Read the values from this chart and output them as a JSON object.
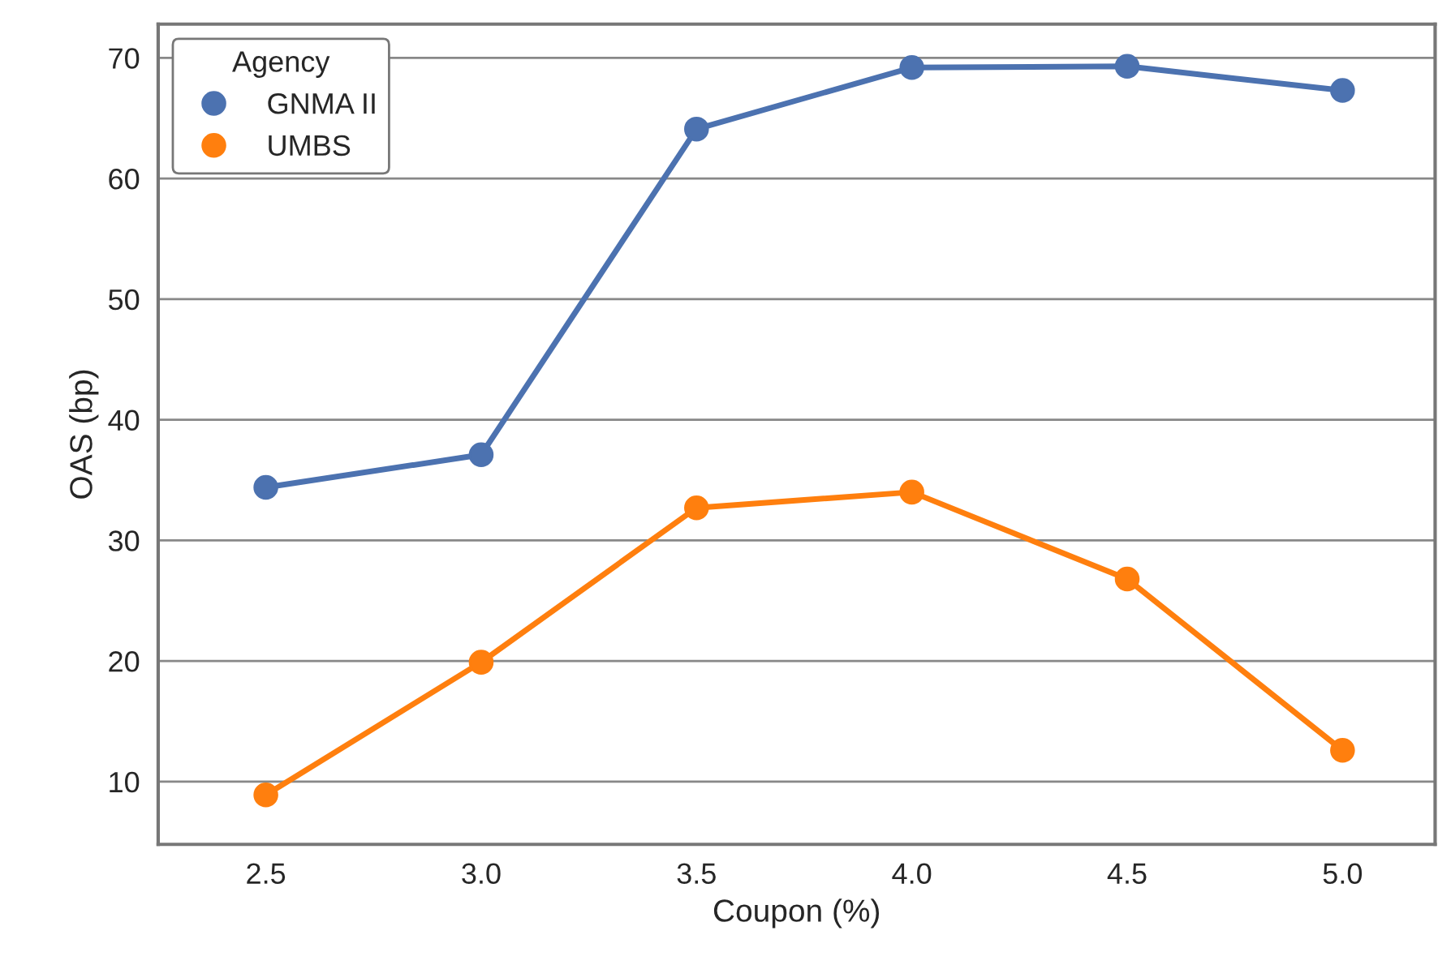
{
  "chart_data": {
    "type": "line",
    "xlabel": "Coupon (%)",
    "ylabel": "OAS (bp)",
    "legend_title": "Agency",
    "categories": [
      "2.5",
      "3.0",
      "3.5",
      "4.0",
      "4.5",
      "5.0"
    ],
    "series": [
      {
        "name": "GNMA II",
        "color": "#4c72b0",
        "values": [
          34.4,
          37.1,
          64.1,
          69.2,
          69.3,
          67.3
        ]
      },
      {
        "name": "UMBS",
        "color": "#ff7f0e",
        "values": [
          8.9,
          19.9,
          32.7,
          34.0,
          26.8,
          12.6
        ]
      }
    ],
    "ylim": [
      4.8,
      72.8
    ],
    "yticks": [
      10,
      20,
      30,
      40,
      50,
      60,
      70
    ],
    "grid": "y",
    "legend": "top left",
    "marker": "circle",
    "line_style": "solid"
  }
}
